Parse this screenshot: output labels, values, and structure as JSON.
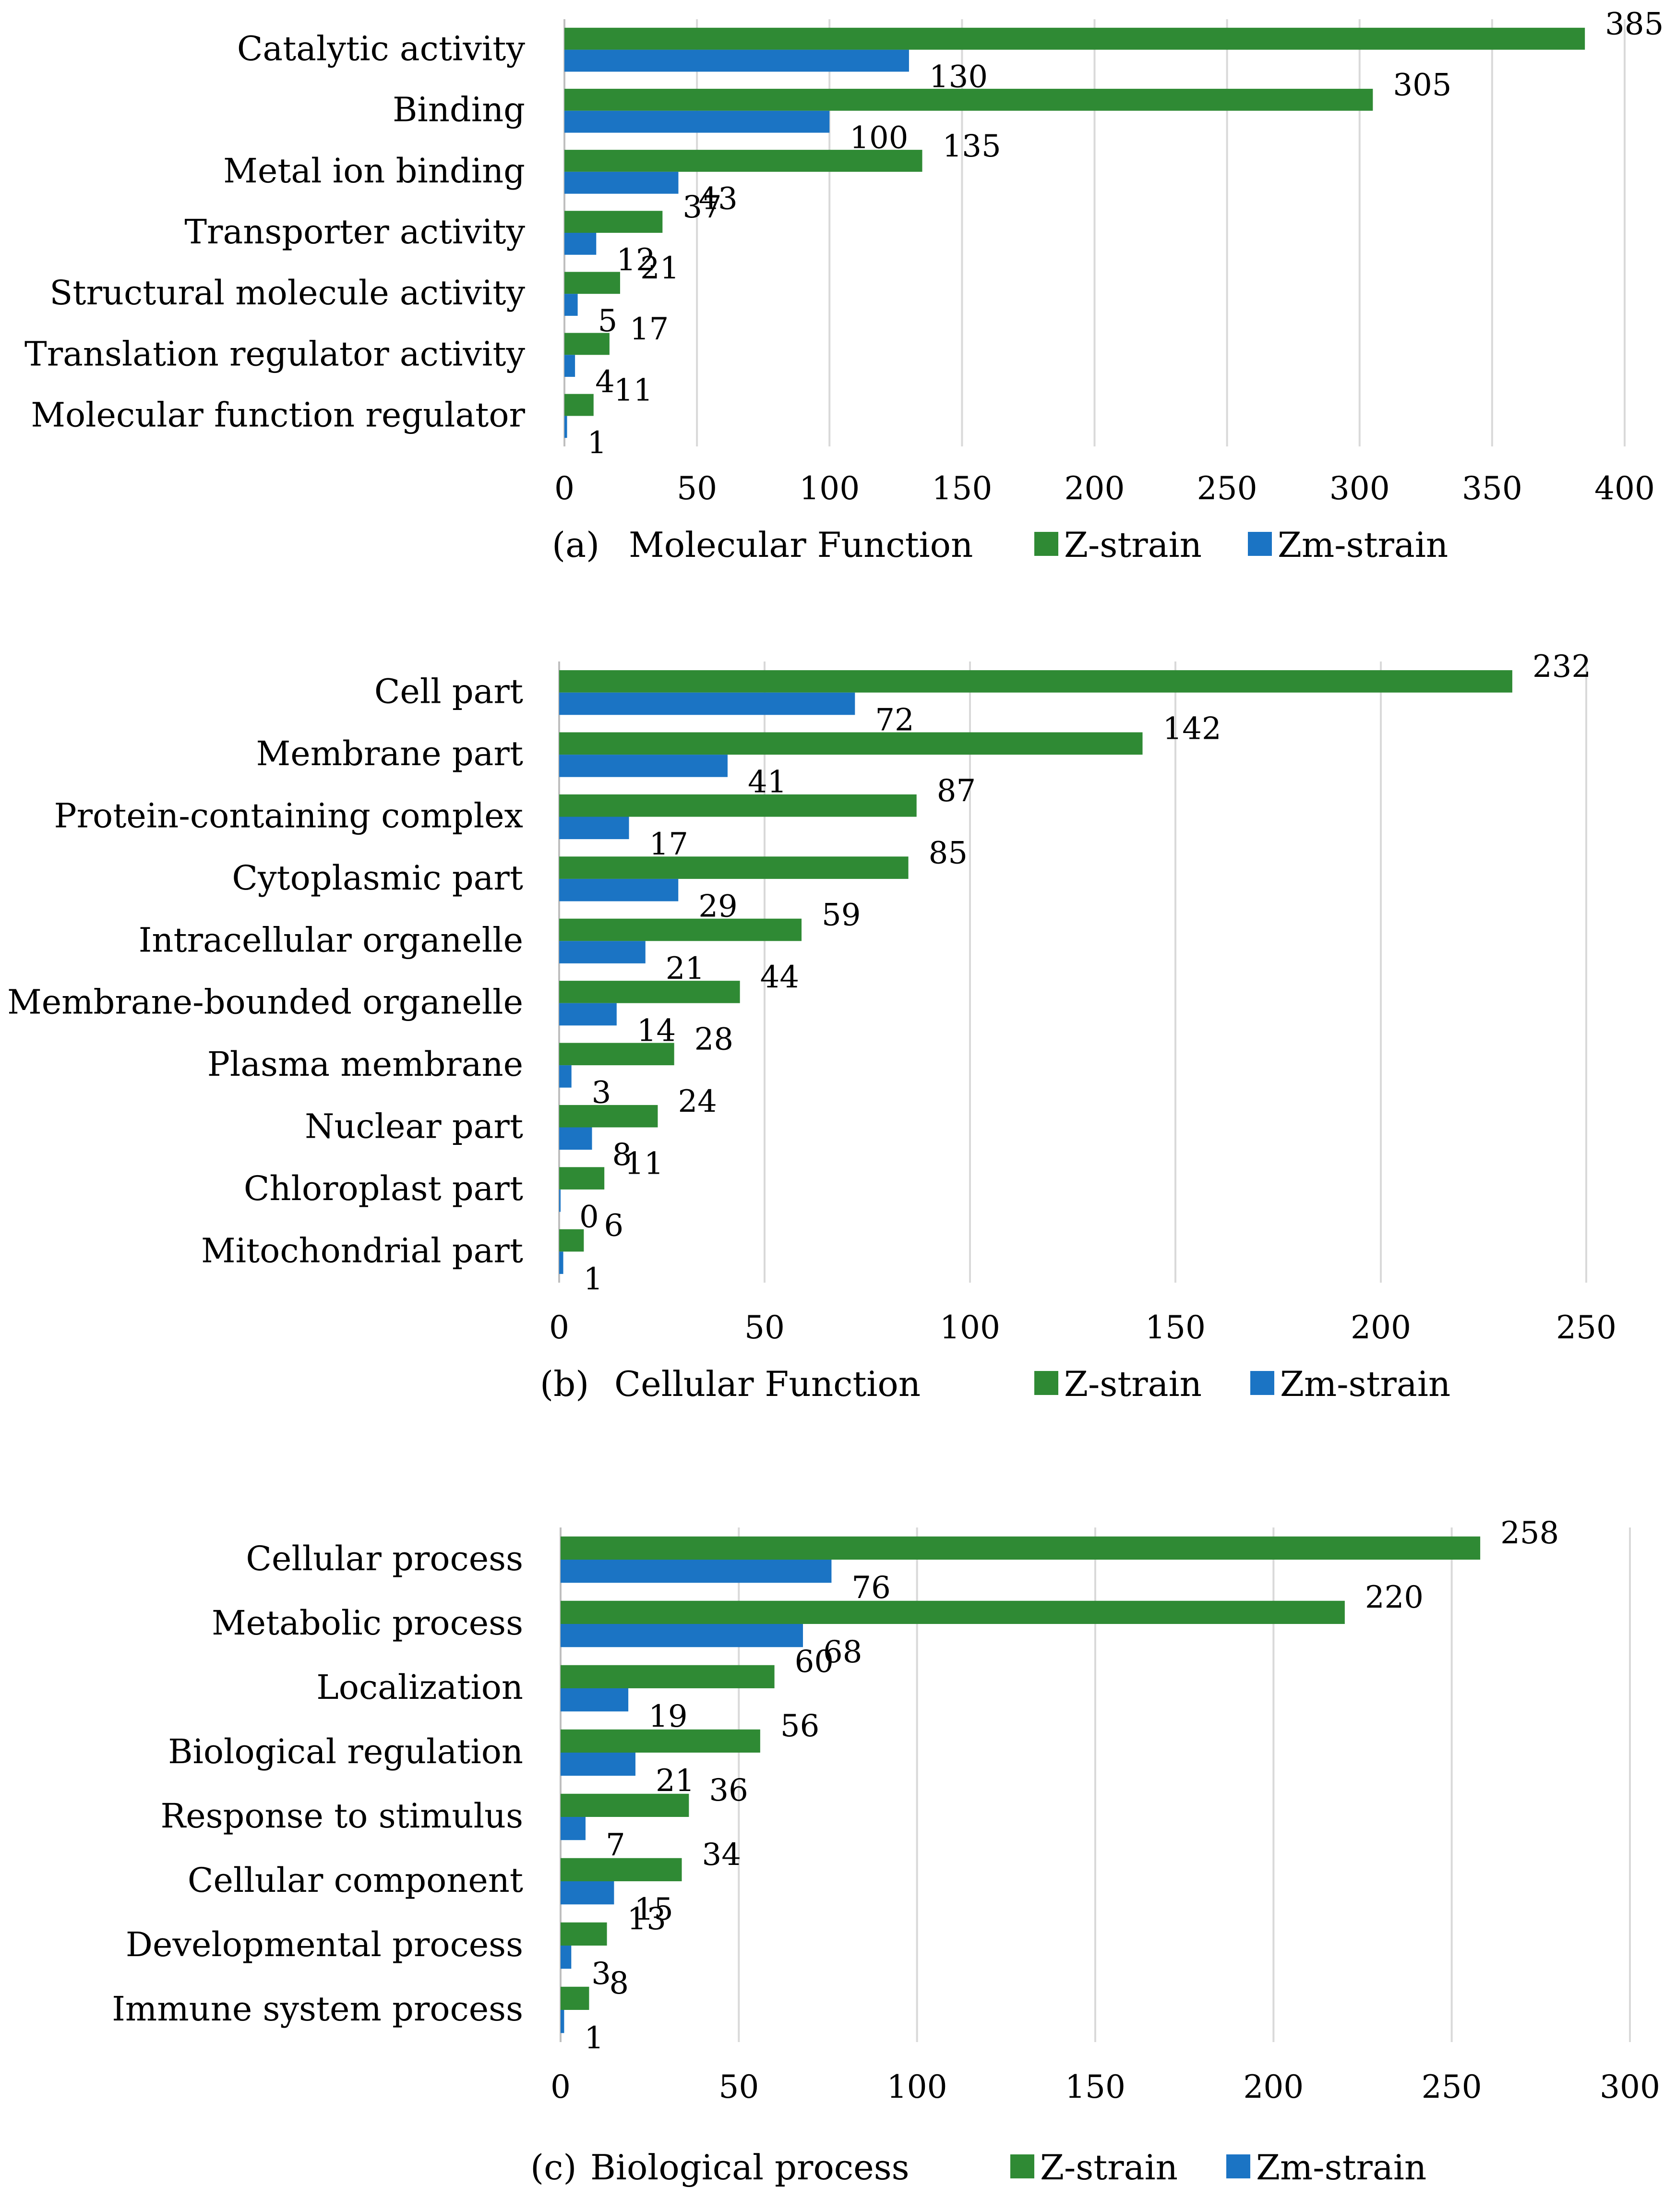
{
  "colors": {
    "z": "#2f8a34",
    "zm": "#1b74c4",
    "grid": "#d9d9d9",
    "axis": "#bfbfbf"
  },
  "chart_data": [
    {
      "type": "bar",
      "orientation": "horizontal",
      "panel_label": "(a)",
      "title": "Molecular Function",
      "categories": [
        "Catalytic activity",
        "Binding",
        "Metal ion binding",
        "Transporter activity",
        "Structural molecule activity",
        "Translation regulator activity",
        "Molecular function regulator"
      ],
      "series": [
        {
          "name": "Z-strain",
          "key": "z",
          "values": [
            385,
            305,
            135,
            37,
            21,
            17,
            11
          ]
        },
        {
          "name": "Zm-strain",
          "key": "zm",
          "values": [
            130,
            100,
            43,
            12,
            5,
            4,
            1
          ]
        }
      ],
      "xlim": [
        0,
        400
      ],
      "ticks": [
        0,
        50,
        100,
        150,
        200,
        250,
        300,
        350,
        400
      ],
      "grid": true,
      "legend": "bottom"
    },
    {
      "type": "bar",
      "orientation": "horizontal",
      "panel_label": "(b)",
      "title": "Cellular Function",
      "categories": [
        "Cell part",
        "Membrane part",
        "Protein-containing complex",
        "Cytoplasmic part",
        "Intracellular organelle",
        "Membrane-bounded organelle",
        "Plasma membrane",
        "Nuclear part",
        "Chloroplast part",
        "Mitochondrial part"
      ],
      "series": [
        {
          "name": "Z-strain",
          "key": "z",
          "values": [
            232,
            142,
            87,
            85,
            59,
            44,
            28,
            24,
            11,
            6
          ]
        },
        {
          "name": "Zm-strain",
          "key": "zm",
          "values": [
            72,
            41,
            17,
            29,
            21,
            14,
            3,
            8,
            0,
            1
          ]
        }
      ],
      "xlim": [
        0,
        250
      ],
      "ticks": [
        0,
        50,
        100,
        150,
        200,
        250
      ],
      "grid": true,
      "legend": "bottom"
    },
    {
      "type": "bar",
      "orientation": "horizontal",
      "panel_label": "(c)",
      "title": "Biological process",
      "categories": [
        "Cellular process",
        "Metabolic process",
        "Localization",
        "Biological regulation",
        "Response to stimulus",
        "Cellular component",
        "Developmental process",
        "Immune system process"
      ],
      "series": [
        {
          "name": "Z-strain",
          "key": "z",
          "values": [
            258,
            220,
            60,
            56,
            36,
            34,
            13,
            8
          ]
        },
        {
          "name": "Zm-strain",
          "key": "zm",
          "values": [
            76,
            68,
            19,
            21,
            7,
            15,
            3,
            1
          ]
        }
      ],
      "xlim": [
        0,
        300
      ],
      "ticks": [
        0,
        50,
        100,
        150,
        200,
        250,
        300
      ],
      "grid": true,
      "legend": "bottom"
    }
  ]
}
